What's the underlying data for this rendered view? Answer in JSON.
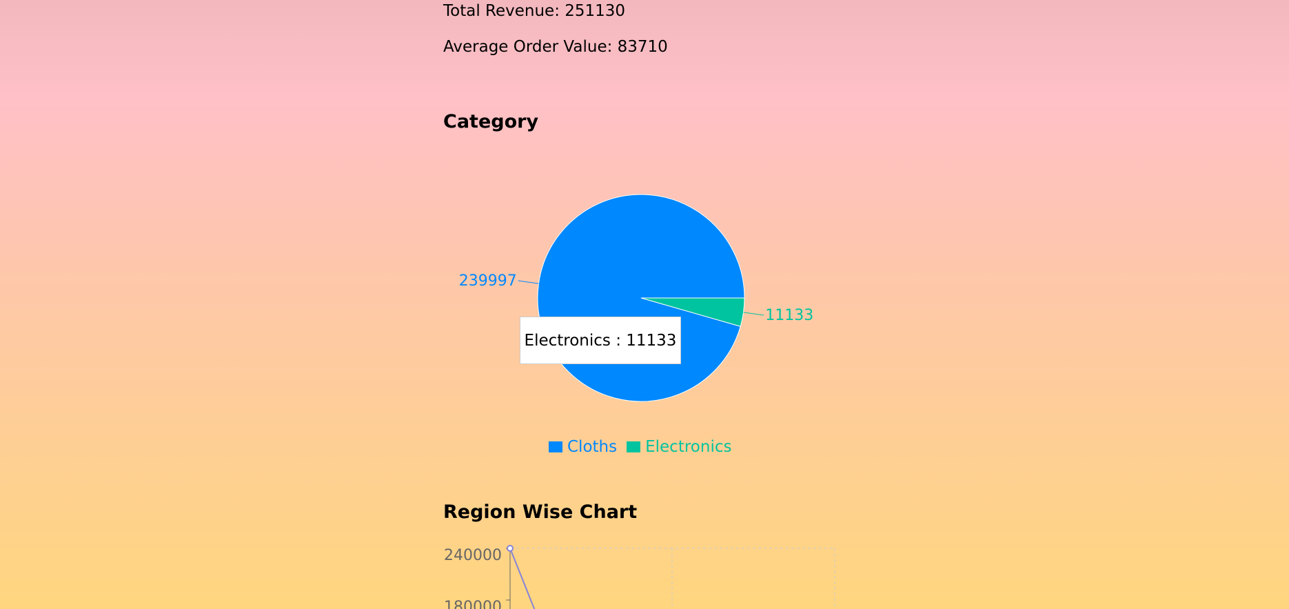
{
  "stats": {
    "total_revenue": "Total Revenue: 251130",
    "average_order_value": "Average Order Value: 83710"
  },
  "category_section": {
    "title": "Category"
  },
  "region_section": {
    "title": "Region Wise Chart"
  },
  "tooltip": {
    "text": "Electronics : 11133"
  },
  "colors": {
    "cloths": "#0088fe",
    "electronics": "#00c49f",
    "region_line": "#8884d8",
    "grid": "#cccccc",
    "axis": "#666666"
  },
  "chart_data": [
    {
      "type": "pie",
      "title": "Category",
      "categories": [
        "Cloths",
        "Electronics"
      ],
      "values": [
        239997,
        11133
      ],
      "data_labels": [
        "239997",
        "11133"
      ],
      "legend": [
        "Cloths",
        "Electronics"
      ],
      "legend_placement": "bottom"
    },
    {
      "type": "line",
      "title": "Region Wise Chart",
      "y_ticks": [
        "240000",
        "180000"
      ],
      "ylim": [
        0,
        240000
      ],
      "grid": true,
      "first_point_y": 240000
    }
  ]
}
